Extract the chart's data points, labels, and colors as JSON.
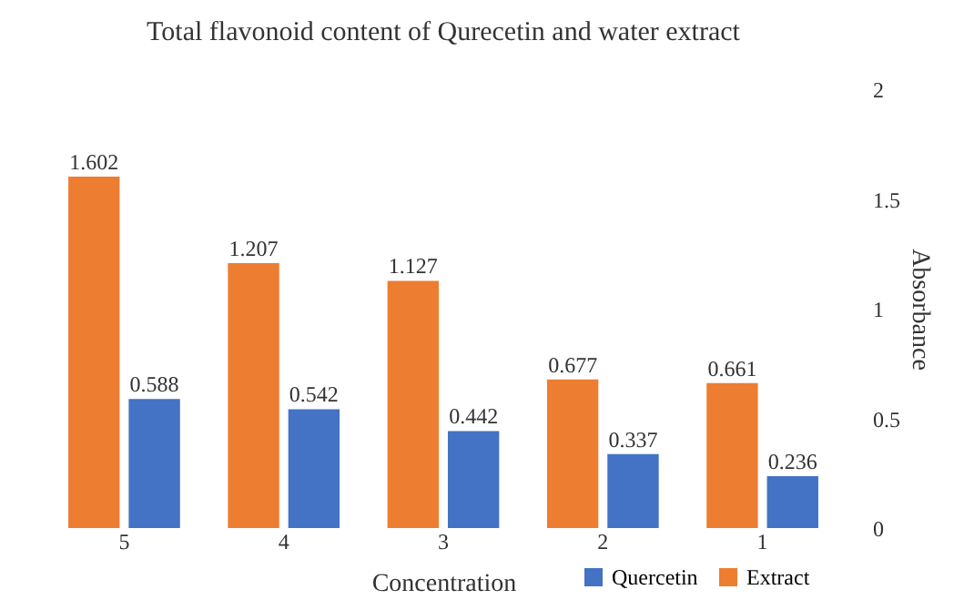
{
  "chart_data": {
    "type": "bar",
    "title": "Total flavonoid content of Qurecetin and water extract",
    "xlabel": "Concentration",
    "ylabel": "Absorbance",
    "categories": [
      "5",
      "4",
      "3",
      "2",
      "1"
    ],
    "series": [
      {
        "name": "Quercetin",
        "color": "#4472c4",
        "values": [
          0.588,
          0.542,
          0.442,
          0.337,
          0.236
        ]
      },
      {
        "name": "Extract",
        "color": "#ed7d31",
        "values": [
          1.602,
          1.207,
          1.127,
          0.677,
          0.661
        ]
      }
    ],
    "ylim": [
      0,
      2
    ],
    "yticks": [
      0,
      0.5,
      1,
      1.5,
      2
    ],
    "grid": false,
    "legend": "bottom right",
    "data_labels": true
  }
}
